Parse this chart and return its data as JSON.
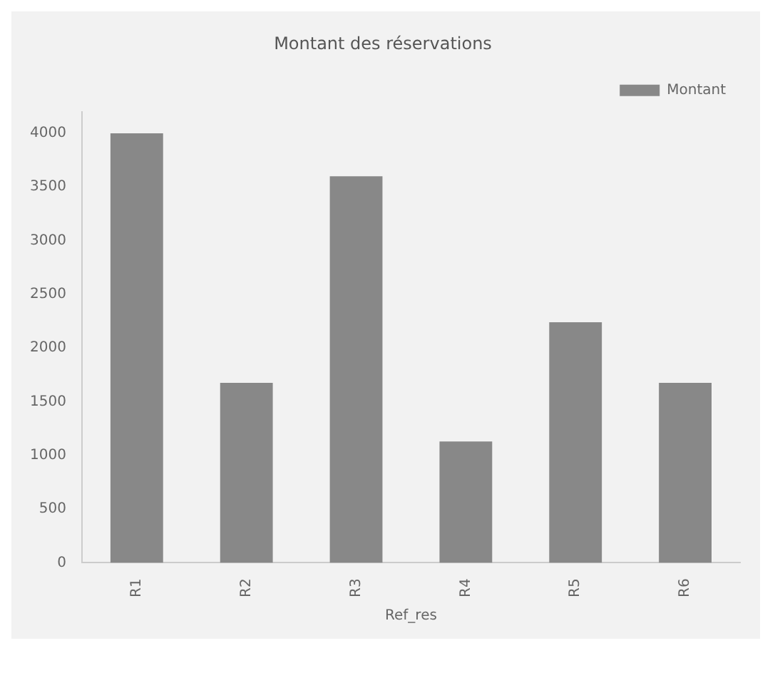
{
  "chart_data": {
    "type": "bar",
    "title": "Montant des réservations",
    "xlabel": "Ref_res",
    "categories": [
      "R1",
      "R2",
      "R3",
      "R4",
      "R5",
      "R6"
    ],
    "series": [
      {
        "name": "Montant",
        "color": "#888888",
        "values": [
          4000,
          1675,
          3600,
          1130,
          2240,
          1675
        ]
      }
    ],
    "ylim": [
      0,
      4200
    ],
    "yticks": [
      0,
      500,
      1000,
      1500,
      2000,
      2500,
      3000,
      3500,
      4000
    ],
    "grid": false,
    "legend": "top right"
  }
}
